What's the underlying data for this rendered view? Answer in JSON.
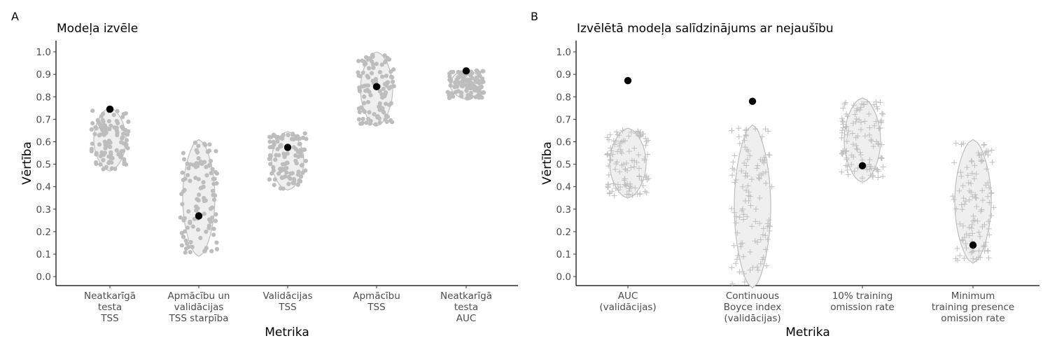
{
  "chart_data": [
    {
      "type": "violin",
      "panel_tag": "A",
      "title": "Modeļa izvēle",
      "xlabel": "Metrika",
      "ylabel": "Vērtība",
      "ylim": [
        -0.04,
        1.05
      ],
      "yticks": [
        "0.0",
        "0.1",
        "0.2",
        "0.3",
        "0.4",
        "0.5",
        "0.6",
        "0.7",
        "0.8",
        "0.9",
        "1.0"
      ],
      "point_style": "dot",
      "categories": [
        {
          "label": [
            "Neatkarīgā",
            "testa",
            "TSS"
          ],
          "range": [
            0.47,
            0.75
          ],
          "selected": 0.745
        },
        {
          "label": [
            "Apmācību un",
            "validācijas",
            "TSS starpība"
          ],
          "range": [
            0.09,
            0.61
          ],
          "selected": 0.27
        },
        {
          "label": [
            "Validācijas",
            "TSS"
          ],
          "range": [
            0.385,
            0.645
          ],
          "selected": 0.575
        },
        {
          "label": [
            "Apmācību",
            "TSS"
          ],
          "range": [
            0.67,
            1.0
          ],
          "selected": 0.845
        },
        {
          "label": [
            "Neatkarīgā",
            "testa",
            "AUC"
          ],
          "range": [
            0.79,
            0.92
          ],
          "selected": 0.915
        }
      ]
    },
    {
      "type": "violin",
      "panel_tag": "B",
      "title": "Izvēlētā modeļa salīdzinājums ar nejaušību",
      "xlabel": "Metrika",
      "ylabel": "Vērtība",
      "ylim": [
        -0.04,
        1.05
      ],
      "yticks": [
        "0.0",
        "0.1",
        "0.2",
        "0.3",
        "0.4",
        "0.5",
        "0.6",
        "0.7",
        "0.8",
        "0.9",
        "1.0"
      ],
      "point_style": "plus",
      "categories": [
        {
          "label": [
            "AUC",
            "(validācijas)"
          ],
          "range": [
            0.35,
            0.66
          ],
          "selected": 0.872
        },
        {
          "label": [
            "Continuous",
            "Boyce index",
            "(validācijas)"
          ],
          "range": [
            -0.05,
            0.675
          ],
          "selected": 0.78
        },
        {
          "label": [
            "10% training",
            "omission rate"
          ],
          "range": [
            0.42,
            0.795
          ],
          "selected": 0.493
        },
        {
          "label": [
            "Minimum",
            "training presence",
            "omission rate"
          ],
          "range": [
            0.06,
            0.61
          ],
          "selected": 0.14
        }
      ]
    }
  ]
}
